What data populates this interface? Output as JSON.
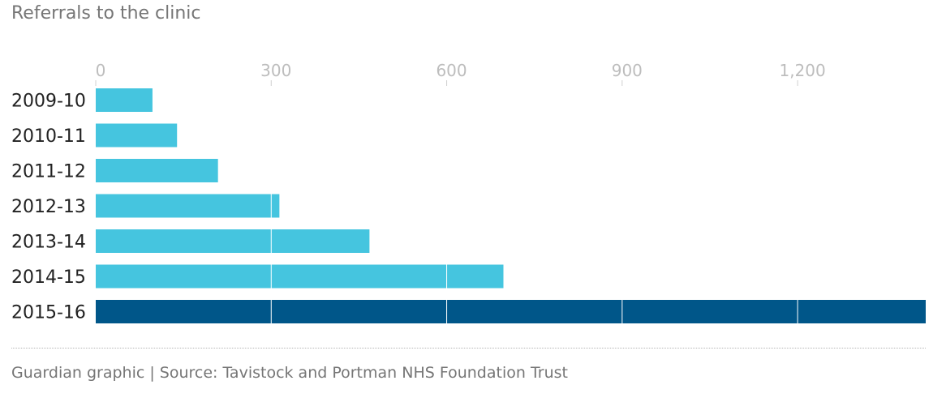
{
  "chart_data": {
    "type": "bar",
    "orientation": "horizontal",
    "title": "Referrals to the clinic",
    "categories": [
      "2009-10",
      "2010-11",
      "2011-12",
      "2012-13",
      "2013-14",
      "2014-15",
      "2015-16"
    ],
    "values": [
      97,
      139,
      209,
      314,
      468,
      697,
      1419
    ],
    "xlim": [
      0,
      1419
    ],
    "ticks": [
      0,
      300,
      600,
      900,
      1200
    ],
    "tick_labels": [
      "0",
      "300",
      "600",
      "900",
      "1,200"
    ],
    "axis_position": "top",
    "xlabel": "",
    "ylabel": "",
    "grid": true,
    "colors": {
      "default_bar": "#45c5df",
      "highlight_bar": "#005689",
      "gridline": "#ffffff",
      "tick_text": "#bdbdbd"
    },
    "highlight_category": "2015-16"
  },
  "footer": {
    "source": "Guardian graphic | Source: Tavistock and Portman NHS Foundation Trust"
  }
}
